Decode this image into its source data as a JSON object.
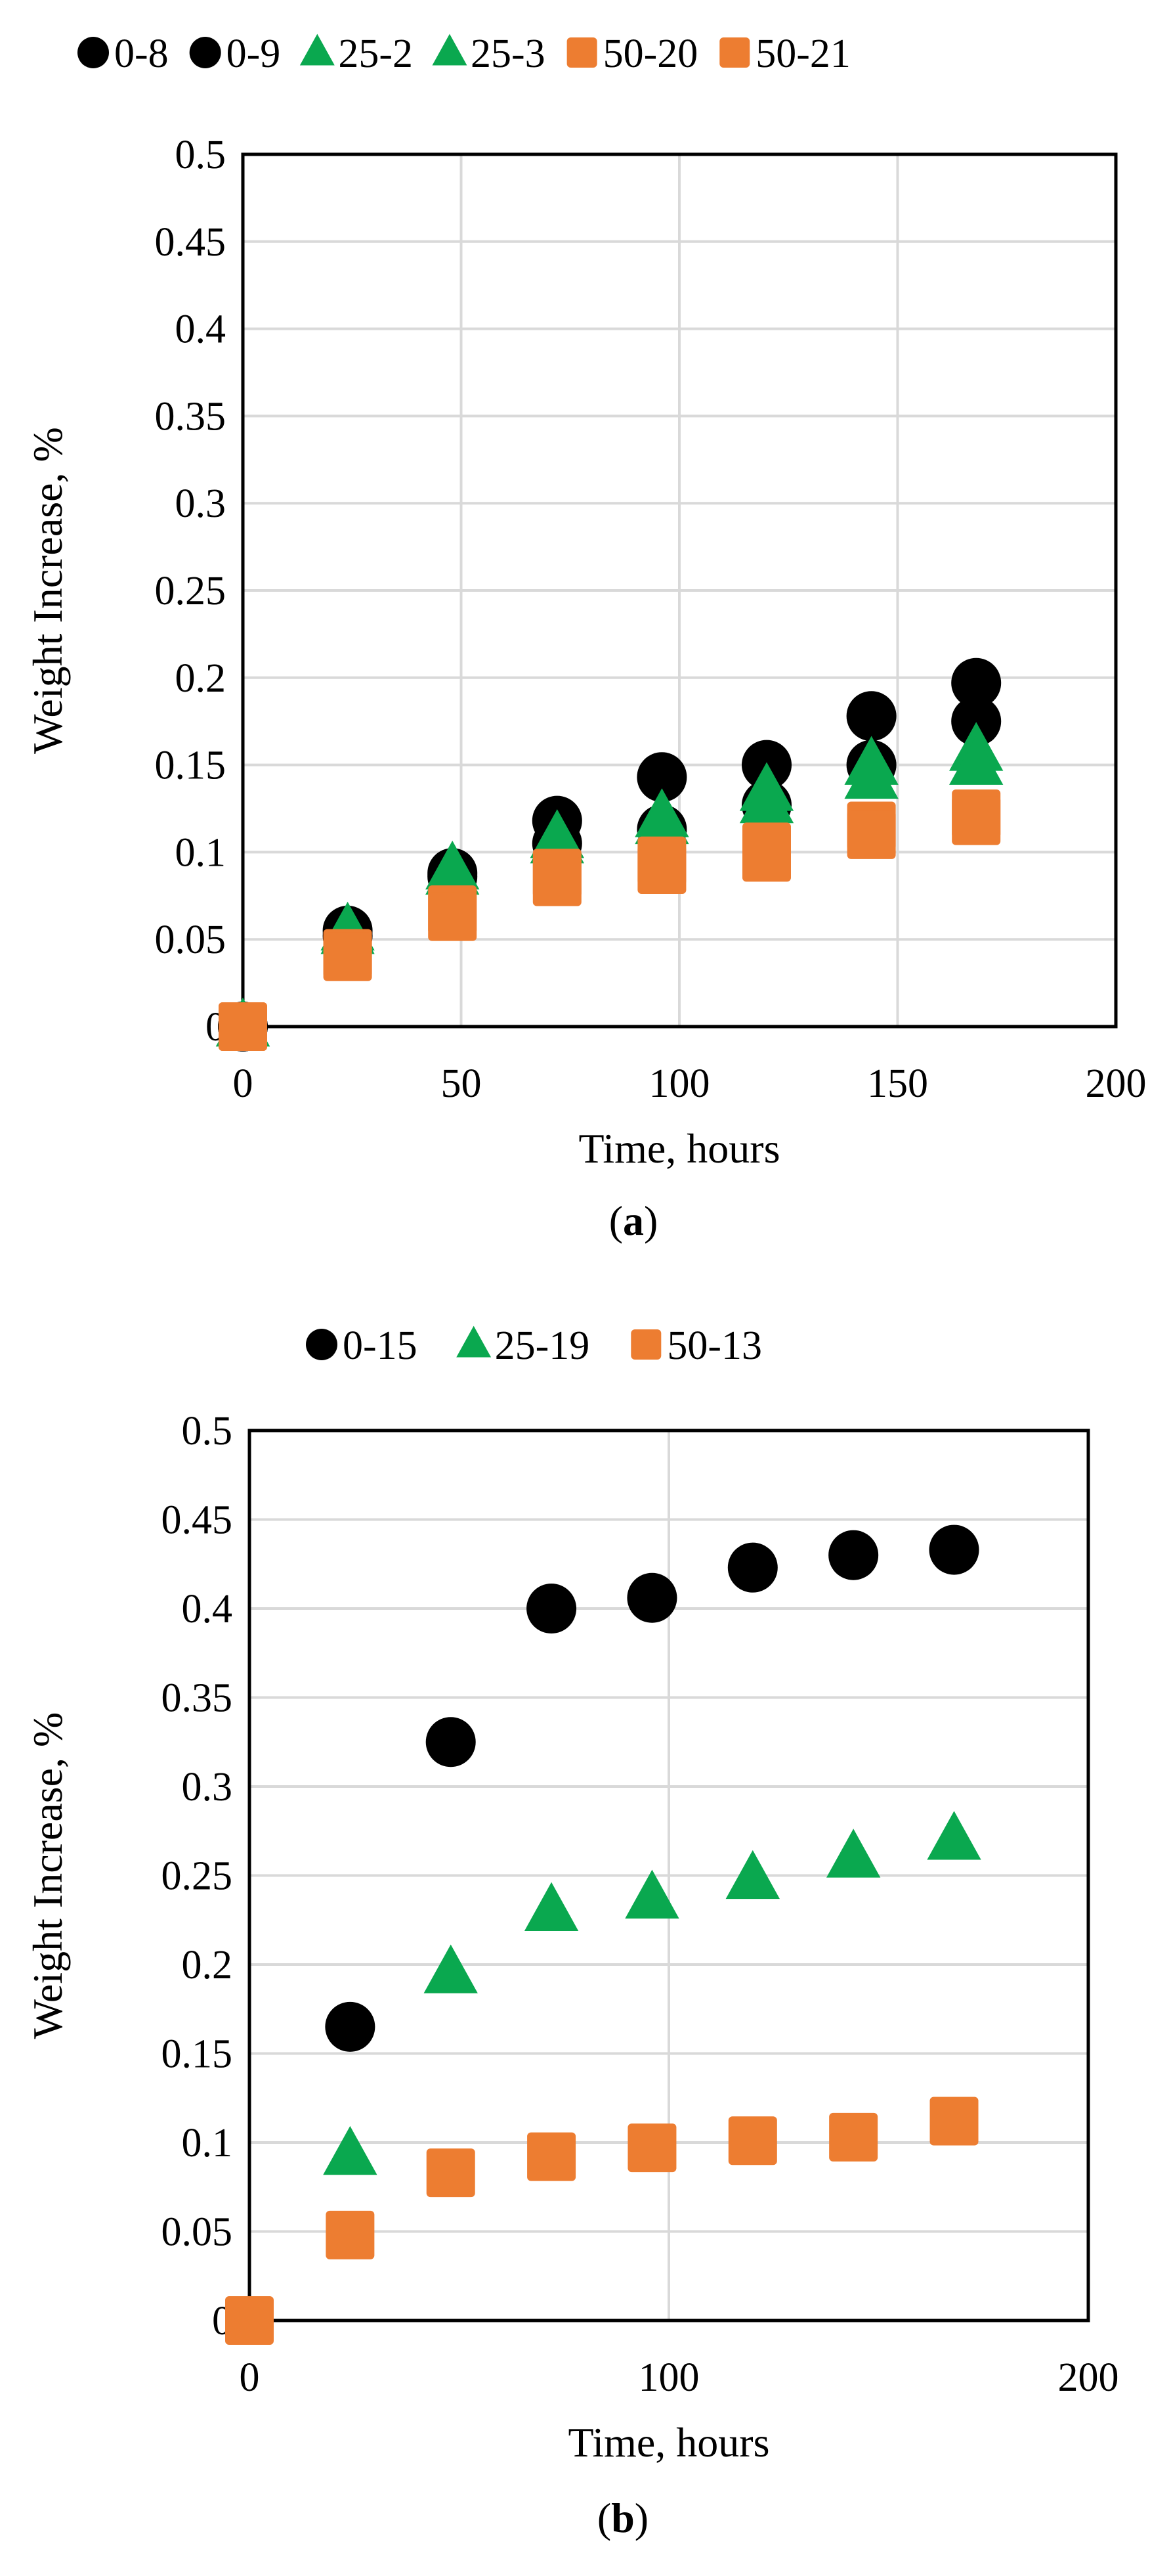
{
  "colors": {
    "black_series": "#000000",
    "green_series": "#0aa84f",
    "orange_series": "#ed7d31",
    "grid": "#d9d9d9",
    "axis": "#000000"
  },
  "chart_data": [
    {
      "id": "a",
      "type": "scatter",
      "caption_letter": "a",
      "xlabel": "Time, hours",
      "ylabel": "Weight Increase, %",
      "xlim": [
        0,
        200
      ],
      "ylim": [
        0,
        0.5
      ],
      "xticks": [
        0,
        50,
        100,
        150,
        200
      ],
      "yticks": [
        0,
        0.05,
        0.1,
        0.15,
        0.2,
        0.25,
        0.3,
        0.35,
        0.4,
        0.45,
        0.5
      ],
      "ytick_labels": [
        "0",
        "0.05",
        "0.1",
        "0.15",
        "0.2",
        "0.25",
        "0.3",
        "0.35",
        "0.4",
        "0.45",
        "0.5"
      ],
      "xtick_labels": [
        "0",
        "50",
        "100",
        "150",
        "200"
      ],
      "grid": true,
      "legend_position": "top",
      "series": [
        {
          "name": "0-8",
          "marker": "circle",
          "color": "#000000",
          "x": [
            0,
            24,
            48,
            72,
            96,
            120,
            144,
            168
          ],
          "y": [
            0,
            0.055,
            0.088,
            0.118,
            0.143,
            0.15,
            0.178,
            0.197
          ]
        },
        {
          "name": "0-9",
          "marker": "circle",
          "color": "#000000",
          "x": [
            0,
            24,
            48,
            72,
            96,
            120,
            144,
            168
          ],
          "y": [
            0,
            0.052,
            0.086,
            0.105,
            0.113,
            0.127,
            0.15,
            0.175
          ]
        },
        {
          "name": "25-2",
          "marker": "triangle",
          "color": "#0aa84f",
          "x": [
            0,
            24,
            48,
            72,
            96,
            120,
            144,
            168
          ],
          "y": [
            0,
            0.055,
            0.09,
            0.108,
            0.12,
            0.135,
            0.15,
            0.158
          ]
        },
        {
          "name": "25-3",
          "marker": "triangle",
          "color": "#0aa84f",
          "x": [
            0,
            24,
            48,
            72,
            96,
            120,
            144,
            168
          ],
          "y": [
            0,
            0.053,
            0.087,
            0.105,
            0.116,
            0.128,
            0.142,
            0.15
          ]
        },
        {
          "name": "50-20",
          "marker": "square",
          "color": "#ed7d31",
          "x": [
            0,
            24,
            48,
            72,
            96,
            120,
            144,
            168
          ],
          "y": [
            0,
            0.042,
            0.067,
            0.088,
            0.095,
            0.103,
            0.115,
            0.122
          ]
        },
        {
          "name": "50-21",
          "marker": "square",
          "color": "#ed7d31",
          "x": [
            0,
            24,
            48,
            72,
            96,
            120,
            144,
            168
          ],
          "y": [
            0,
            0.04,
            0.063,
            0.083,
            0.09,
            0.097,
            0.11,
            0.118
          ]
        }
      ]
    },
    {
      "id": "b",
      "type": "scatter",
      "caption_letter": "b",
      "xlabel": "Time, hours",
      "ylabel": "Weight Increase, %",
      "xlim": [
        0,
        200
      ],
      "ylim": [
        0,
        0.5
      ],
      "xticks": [
        0,
        100,
        200
      ],
      "yticks": [
        0,
        0.05,
        0.1,
        0.15,
        0.2,
        0.25,
        0.3,
        0.35,
        0.4,
        0.45,
        0.5
      ],
      "ytick_labels": [
        "0",
        "0.05",
        "0.1",
        "0.15",
        "0.2",
        "0.25",
        "0.3",
        "0.35",
        "0.4",
        "0.45",
        "0.5"
      ],
      "xtick_labels": [
        "0",
        "100",
        "200"
      ],
      "grid": true,
      "legend_position": "top",
      "series": [
        {
          "name": "0-15",
          "marker": "circle",
          "color": "#000000",
          "x": [
            24,
            48,
            72,
            96,
            120,
            144,
            168
          ],
          "y": [
            0.165,
            0.325,
            0.4,
            0.406,
            0.423,
            0.43,
            0.433
          ]
        },
        {
          "name": "25-19",
          "marker": "triangle",
          "color": "#0aa84f",
          "x": [
            24,
            48,
            72,
            96,
            120,
            144,
            168
          ],
          "y": [
            0.093,
            0.195,
            0.23,
            0.237,
            0.248,
            0.26,
            0.27
          ]
        },
        {
          "name": "50-13",
          "marker": "square",
          "color": "#ed7d31",
          "x": [
            0,
            24,
            48,
            72,
            96,
            120,
            144,
            168
          ],
          "y": [
            0,
            0.048,
            0.083,
            0.092,
            0.097,
            0.101,
            0.103,
            0.112
          ]
        }
      ]
    }
  ]
}
